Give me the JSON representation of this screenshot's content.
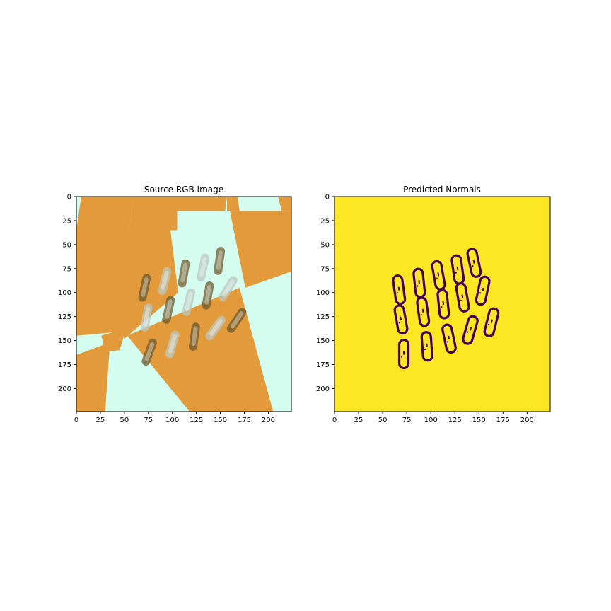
{
  "colors": {
    "orange": "#e29a3a",
    "mint": "#d4fcef",
    "yellow": "#fde725",
    "purple": "#440154",
    "object_light": "#b9c8c0",
    "object_dark": "#6f5a2c"
  },
  "chart_data": [
    {
      "type": "image",
      "title": "Source RGB Image",
      "xlim": [
        0,
        224
      ],
      "ylim": [
        224,
        0
      ],
      "xticks": [
        "0",
        "25",
        "50",
        "75",
        "100",
        "125",
        "150",
        "175",
        "200"
      ],
      "yticks": [
        "0",
        "25",
        "50",
        "75",
        "100",
        "125",
        "150",
        "175",
        "200"
      ],
      "grid": false
    },
    {
      "type": "heatmap",
      "title": "Predicted Normals",
      "xlim": [
        0,
        224
      ],
      "ylim": [
        224,
        0
      ],
      "xticks": [
        "0",
        "25",
        "50",
        "75",
        "100",
        "125",
        "150",
        "175",
        "200"
      ],
      "yticks": [
        "0",
        "25",
        "50",
        "75",
        "100",
        "125",
        "150",
        "175",
        "200"
      ],
      "grid": false,
      "objects": [
        {
          "cx": 67,
          "cy": 97,
          "angle": -8
        },
        {
          "cx": 88,
          "cy": 90,
          "angle": -6
        },
        {
          "cx": 108,
          "cy": 82,
          "angle": -10
        },
        {
          "cx": 128,
          "cy": 76,
          "angle": -8
        },
        {
          "cx": 145,
          "cy": 69,
          "angle": -12
        },
        {
          "cx": 69,
          "cy": 128,
          "angle": -10
        },
        {
          "cx": 92,
          "cy": 120,
          "angle": -8
        },
        {
          "cx": 113,
          "cy": 112,
          "angle": -6
        },
        {
          "cx": 133,
          "cy": 105,
          "angle": -10
        },
        {
          "cx": 154,
          "cy": 98,
          "angle": 12
        },
        {
          "cx": 72,
          "cy": 164,
          "angle": 0
        },
        {
          "cx": 96,
          "cy": 156,
          "angle": -4
        },
        {
          "cx": 119,
          "cy": 148,
          "angle": -12
        },
        {
          "cx": 141,
          "cy": 139,
          "angle": 16
        },
        {
          "cx": 163,
          "cy": 131,
          "angle": 14
        }
      ]
    }
  ]
}
